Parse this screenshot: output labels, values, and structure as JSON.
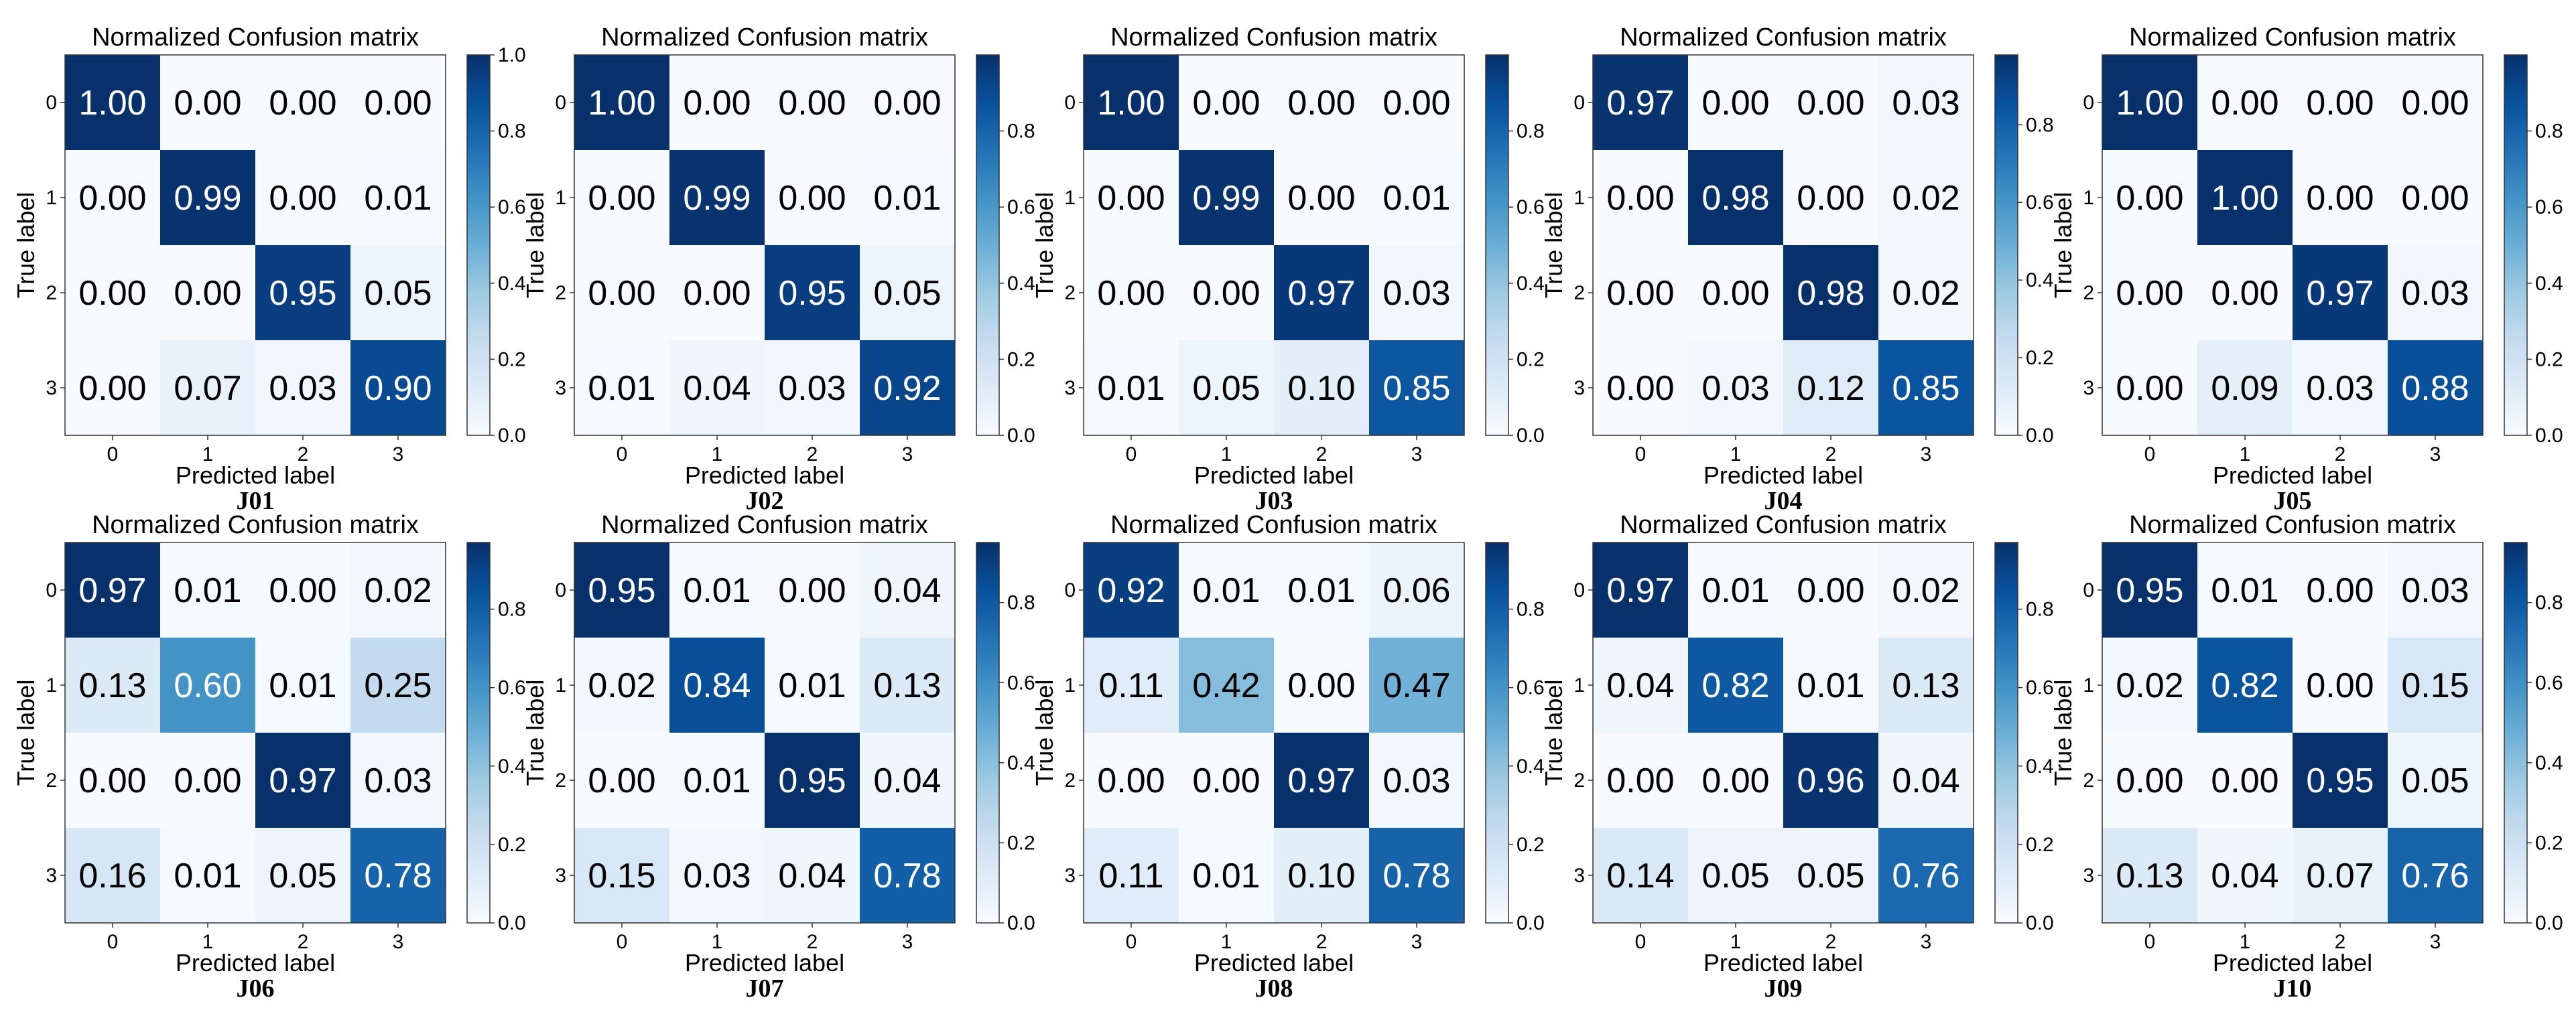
{
  "chart_data": [
    {
      "type": "heatmap",
      "panel": "J01",
      "title": "Normalized Confusion matrix",
      "xlabel": "Predicted label",
      "ylabel": "True label",
      "x_ticks": [
        "0",
        "1",
        "2",
        "3"
      ],
      "y_ticks": [
        "0",
        "1",
        "2",
        "3"
      ],
      "values": [
        [
          "1.00",
          "0.00",
          "0.00",
          "0.00"
        ],
        [
          "0.00",
          "0.99",
          "0.00",
          "0.01"
        ],
        [
          "0.00",
          "0.00",
          "0.95",
          "0.05"
        ],
        [
          "0.00",
          "0.07",
          "0.03",
          "0.90"
        ]
      ],
      "colorbar_ticks": [
        "0.0",
        "0.2",
        "0.4",
        "0.6",
        "0.8",
        "1.0"
      ],
      "colorbar_range": [
        0,
        1.0
      ],
      "colormap": "Blues"
    },
    {
      "type": "heatmap",
      "panel": "J02",
      "title": "Normalized Confusion matrix",
      "xlabel": "Predicted label",
      "ylabel": "True label",
      "x_ticks": [
        "0",
        "1",
        "2",
        "3"
      ],
      "y_ticks": [
        "0",
        "1",
        "2",
        "3"
      ],
      "values": [
        [
          "1.00",
          "0.00",
          "0.00",
          "0.00"
        ],
        [
          "0.00",
          "0.99",
          "0.00",
          "0.01"
        ],
        [
          "0.00",
          "0.00",
          "0.95",
          "0.05"
        ],
        [
          "0.01",
          "0.04",
          "0.03",
          "0.92"
        ]
      ],
      "colorbar_ticks": [
        "0.0",
        "0.2",
        "0.4",
        "0.6",
        "0.8"
      ],
      "colorbar_range": [
        0,
        1.0
      ],
      "colormap": "Blues"
    },
    {
      "type": "heatmap",
      "panel": "J03",
      "title": "Normalized Confusion matrix",
      "xlabel": "Predicted label",
      "ylabel": "True label",
      "x_ticks": [
        "0",
        "1",
        "2",
        "3"
      ],
      "y_ticks": [
        "0",
        "1",
        "2",
        "3"
      ],
      "values": [
        [
          "1.00",
          "0.00",
          "0.00",
          "0.00"
        ],
        [
          "0.00",
          "0.99",
          "0.00",
          "0.01"
        ],
        [
          "0.00",
          "0.00",
          "0.97",
          "0.03"
        ],
        [
          "0.01",
          "0.05",
          "0.10",
          "0.85"
        ]
      ],
      "colorbar_ticks": [
        "0.0",
        "0.2",
        "0.4",
        "0.6",
        "0.8"
      ],
      "colorbar_range": [
        0,
        1.0
      ],
      "colormap": "Blues"
    },
    {
      "type": "heatmap",
      "panel": "J04",
      "title": "Normalized Confusion matrix",
      "xlabel": "Predicted label",
      "ylabel": "True label",
      "x_ticks": [
        "0",
        "1",
        "2",
        "3"
      ],
      "y_ticks": [
        "0",
        "1",
        "2",
        "3"
      ],
      "values": [
        [
          "0.97",
          "0.00",
          "0.00",
          "0.03"
        ],
        [
          "0.00",
          "0.98",
          "0.00",
          "0.02"
        ],
        [
          "0.00",
          "0.00",
          "0.98",
          "0.02"
        ],
        [
          "0.00",
          "0.03",
          "0.12",
          "0.85"
        ]
      ],
      "colorbar_ticks": [
        "0.0",
        "0.2",
        "0.4",
        "0.6",
        "0.8"
      ],
      "colorbar_range": [
        0,
        0.98
      ],
      "colormap": "Blues"
    },
    {
      "type": "heatmap",
      "panel": "J05",
      "title": "Normalized Confusion matrix",
      "xlabel": "Predicted label",
      "ylabel": "True label",
      "x_ticks": [
        "0",
        "1",
        "2",
        "3"
      ],
      "y_ticks": [
        "0",
        "1",
        "2",
        "3"
      ],
      "values": [
        [
          "1.00",
          "0.00",
          "0.00",
          "0.00"
        ],
        [
          "0.00",
          "1.00",
          "0.00",
          "0.00"
        ],
        [
          "0.00",
          "0.00",
          "0.97",
          "0.03"
        ],
        [
          "0.00",
          "0.09",
          "0.03",
          "0.88"
        ]
      ],
      "colorbar_ticks": [
        "0.0",
        "0.2",
        "0.4",
        "0.6",
        "0.8"
      ],
      "colorbar_range": [
        0,
        1.0
      ],
      "colormap": "Blues"
    },
    {
      "type": "heatmap",
      "panel": "J06",
      "title": "Normalized Confusion matrix",
      "xlabel": "Predicted label",
      "ylabel": "True label",
      "x_ticks": [
        "0",
        "1",
        "2",
        "3"
      ],
      "y_ticks": [
        "0",
        "1",
        "2",
        "3"
      ],
      "values": [
        [
          "0.97",
          "0.01",
          "0.00",
          "0.02"
        ],
        [
          "0.13",
          "0.60",
          "0.01",
          "0.25"
        ],
        [
          "0.00",
          "0.00",
          "0.97",
          "0.03"
        ],
        [
          "0.16",
          "0.01",
          "0.05",
          "0.78"
        ]
      ],
      "colorbar_ticks": [
        "0.0",
        "0.2",
        "0.4",
        "0.6",
        "0.8"
      ],
      "colorbar_range": [
        0,
        0.97
      ],
      "colormap": "Blues"
    },
    {
      "type": "heatmap",
      "panel": "J07",
      "title": "Normalized Confusion matrix",
      "xlabel": "Predicted label",
      "ylabel": "True label",
      "x_ticks": [
        "0",
        "1",
        "2",
        "3"
      ],
      "y_ticks": [
        "0",
        "1",
        "2",
        "3"
      ],
      "values": [
        [
          "0.95",
          "0.01",
          "0.00",
          "0.04"
        ],
        [
          "0.02",
          "0.84",
          "0.01",
          "0.13"
        ],
        [
          "0.00",
          "0.01",
          "0.95",
          "0.04"
        ],
        [
          "0.15",
          "0.03",
          "0.04",
          "0.78"
        ]
      ],
      "colorbar_ticks": [
        "0.0",
        "0.2",
        "0.4",
        "0.6",
        "0.8"
      ],
      "colorbar_range": [
        0,
        0.95
      ],
      "colormap": "Blues"
    },
    {
      "type": "heatmap",
      "panel": "J08",
      "title": "Normalized Confusion matrix",
      "xlabel": "Predicted label",
      "ylabel": "True label",
      "x_ticks": [
        "0",
        "1",
        "2",
        "3"
      ],
      "y_ticks": [
        "0",
        "1",
        "2",
        "3"
      ],
      "values": [
        [
          "0.92",
          "0.01",
          "0.01",
          "0.06"
        ],
        [
          "0.11",
          "0.42",
          "0.00",
          "0.47"
        ],
        [
          "0.00",
          "0.00",
          "0.97",
          "0.03"
        ],
        [
          "0.11",
          "0.01",
          "0.10",
          "0.78"
        ]
      ],
      "colorbar_ticks": [
        "0.0",
        "0.2",
        "0.4",
        "0.6",
        "0.8"
      ],
      "colorbar_range": [
        0,
        0.97
      ],
      "colormap": "Blues"
    },
    {
      "type": "heatmap",
      "panel": "J09",
      "title": "Normalized Confusion matrix",
      "xlabel": "Predicted label",
      "ylabel": "True label",
      "x_ticks": [
        "0",
        "1",
        "2",
        "3"
      ],
      "y_ticks": [
        "0",
        "1",
        "2",
        "3"
      ],
      "values": [
        [
          "0.97",
          "0.01",
          "0.00",
          "0.02"
        ],
        [
          "0.04",
          "0.82",
          "0.01",
          "0.13"
        ],
        [
          "0.00",
          "0.00",
          "0.96",
          "0.04"
        ],
        [
          "0.14",
          "0.05",
          "0.05",
          "0.76"
        ]
      ],
      "colorbar_ticks": [
        "0.0",
        "0.2",
        "0.4",
        "0.6",
        "0.8"
      ],
      "colorbar_range": [
        0,
        0.97
      ],
      "colormap": "Blues"
    },
    {
      "type": "heatmap",
      "panel": "J10",
      "title": "Normalized Confusion matrix",
      "xlabel": "Predicted label",
      "ylabel": "True label",
      "x_ticks": [
        "0",
        "1",
        "2",
        "3"
      ],
      "y_ticks": [
        "0",
        "1",
        "2",
        "3"
      ],
      "values": [
        [
          "0.95",
          "0.01",
          "0.00",
          "0.03"
        ],
        [
          "0.02",
          "0.82",
          "0.00",
          "0.15"
        ],
        [
          "0.00",
          "0.00",
          "0.95",
          "0.05"
        ],
        [
          "0.13",
          "0.04",
          "0.07",
          "0.76"
        ]
      ],
      "colorbar_ticks": [
        "0.0",
        "0.2",
        "0.4",
        "0.6",
        "0.8"
      ],
      "colorbar_range": [
        0,
        0.95
      ],
      "colormap": "Blues"
    }
  ],
  "colors": {
    "blues_low": "#f7fbff",
    "blues_high": "#08306b",
    "text_light": "#ffffff",
    "text_dark": "#000000"
  }
}
